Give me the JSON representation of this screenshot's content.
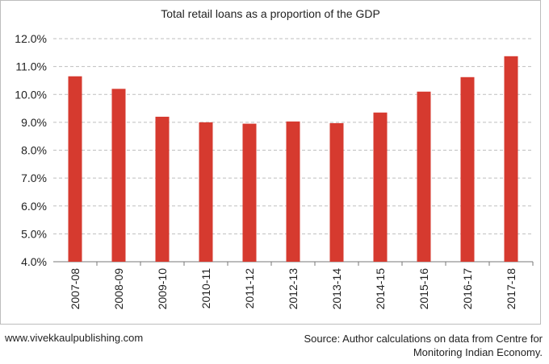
{
  "chart_data": {
    "type": "bar",
    "title": "Total retail loans as a proportion of the GDP",
    "xlabel": "",
    "ylabel": "",
    "categories": [
      "2007-08",
      "2008-09",
      "2009-10",
      "2010-11",
      "2011-12",
      "2012-13",
      "2013-14",
      "2014-15",
      "2015-16",
      "2016-17",
      "2017-18"
    ],
    "values": [
      10.65,
      10.2,
      9.2,
      9.0,
      8.95,
      9.03,
      8.97,
      9.35,
      10.1,
      10.62,
      11.37
    ],
    "ylim": [
      4.0,
      12.0
    ],
    "yticks": [
      "4.0%",
      "5.0%",
      "6.0%",
      "7.0%",
      "8.0%",
      "9.0%",
      "10.0%",
      "11.0%",
      "12.0%"
    ],
    "grid": true,
    "bar_color": "#d63a2f",
    "grid_color": "#bfbfbf"
  },
  "footer": {
    "website": "www.vivekkaulpublishing.com",
    "source": "Source: Author calculations on data from Centre for Monitoring Indian Economy."
  }
}
